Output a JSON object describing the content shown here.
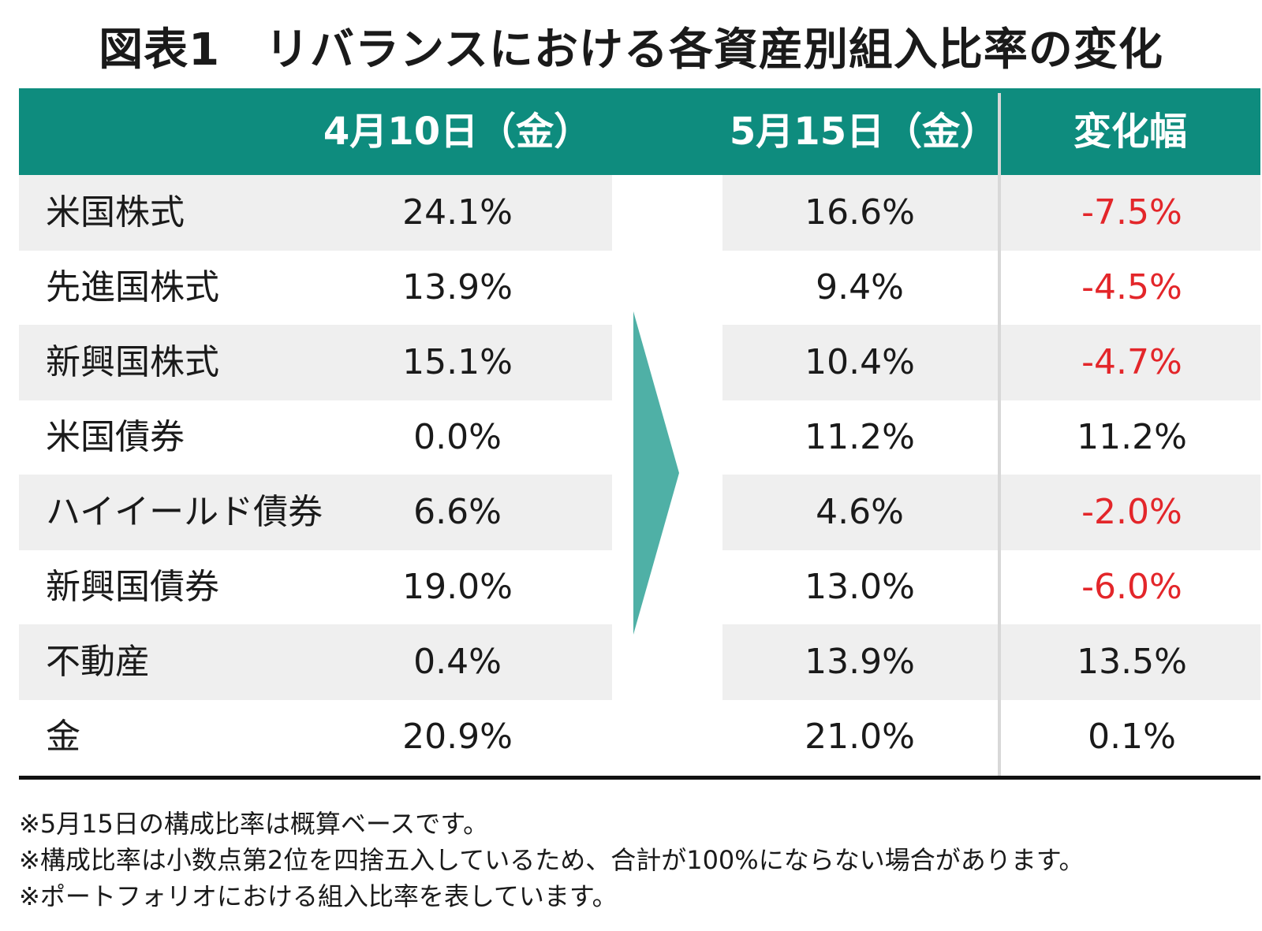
{
  "title": "図表1　リバランスにおける各資産別組入比率の変化",
  "header": {
    "col_apr": "4月10日（金）",
    "col_may": "5月15日（金）",
    "col_change": "変化幅"
  },
  "colors": {
    "header_bg": "#0e8c7e",
    "arrow": "#4fb0a6",
    "row_alt_bg": "#efefef",
    "negative": "#e3262a"
  },
  "rows": [
    {
      "label": "米国株式",
      "apr": "24.1%",
      "may": "16.6%",
      "change": "-7.5%",
      "negative": true
    },
    {
      "label": "先進国株式",
      "apr": "13.9%",
      "may": "9.4%",
      "change": "-4.5%",
      "negative": true
    },
    {
      "label": "新興国株式",
      "apr": "15.1%",
      "may": "10.4%",
      "change": "-4.7%",
      "negative": true
    },
    {
      "label": "米国債券",
      "apr": "0.0%",
      "may": "11.2%",
      "change": "11.2%",
      "negative": false
    },
    {
      "label": "ハイイールド債券",
      "apr": "6.6%",
      "may": "4.6%",
      "change": "-2.0%",
      "negative": true
    },
    {
      "label": "新興国債券",
      "apr": "19.0%",
      "may": "13.0%",
      "change": "-6.0%",
      "negative": true
    },
    {
      "label": "不動産",
      "apr": "0.4%",
      "may": "13.9%",
      "change": "13.5%",
      "negative": false
    },
    {
      "label": "金",
      "apr": "20.9%",
      "may": "21.0%",
      "change": "0.1%",
      "negative": false
    }
  ],
  "notes": [
    "※5月15日の構成比率は概算ベースです。",
    "※構成比率は小数点第2位を四捨五入しているため、合計が100%にならない場合があります。",
    "※ポートフォリオにおける組入比率を表しています。"
  ]
}
